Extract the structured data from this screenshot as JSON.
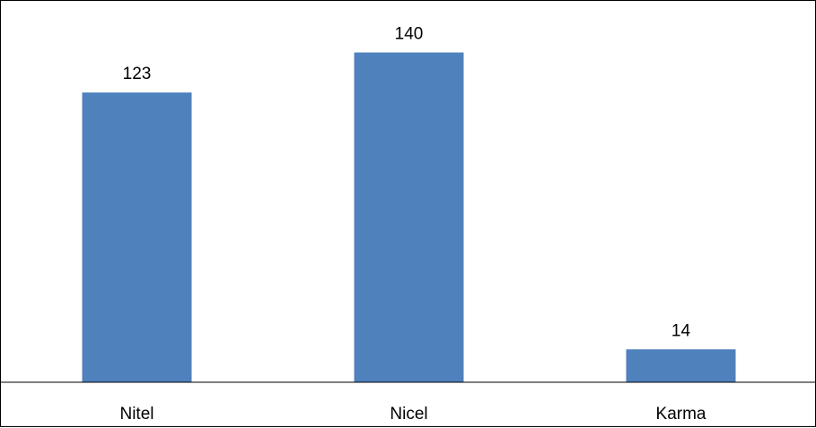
{
  "chart_data": {
    "type": "bar",
    "categories": [
      "Nitel",
      "Nicel",
      "Karma"
    ],
    "values": [
      123,
      140,
      14
    ],
    "data_labels": [
      "123",
      "140",
      "14"
    ],
    "title": "",
    "xlabel": "",
    "ylabel": "",
    "ylim": [
      0,
      160
    ],
    "grid": false,
    "legend": "none",
    "colors": {
      "bar": "#4f81bd",
      "axis": "#000000",
      "text": "#000000",
      "background": "#ffffff"
    }
  }
}
